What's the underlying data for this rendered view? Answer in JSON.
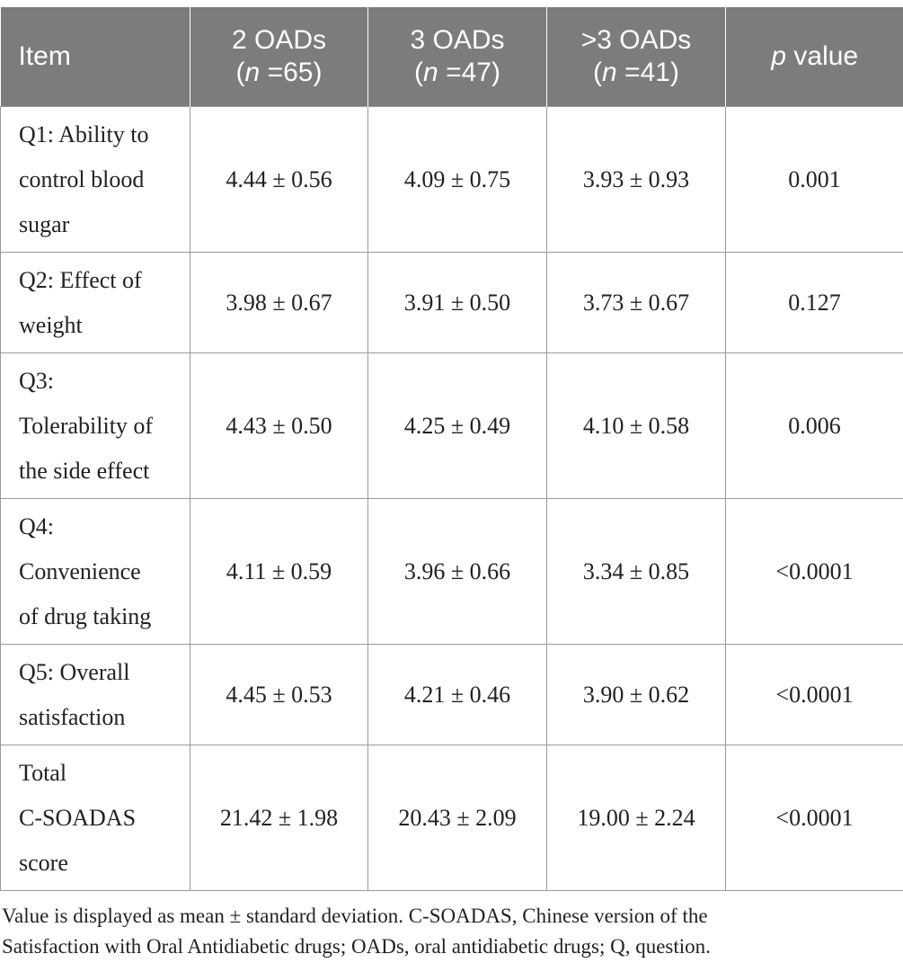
{
  "table": {
    "headers": [
      {
        "main": "Item",
        "sub_pre": "",
        "sub_it": "",
        "sub_post": ""
      },
      {
        "main": "2 OADs",
        "sub_pre": "(",
        "sub_it": "n",
        "sub_post": " =65)"
      },
      {
        "main": "3 OADs",
        "sub_pre": "(",
        "sub_it": "n",
        "sub_post": " =47)"
      },
      {
        "main": ">3 OADs",
        "sub_pre": "(",
        "sub_it": "n",
        "sub_post": " =41)"
      },
      {
        "main_it": "p",
        "main": " value"
      }
    ],
    "rows": [
      {
        "item_lines": [
          "Q1: Ability to",
          "control blood",
          "sugar"
        ],
        "v2": "4.44 ± 0.56",
        "v3": "4.09 ± 0.75",
        "v3plus": "3.93 ± 0.93",
        "p": "0.001"
      },
      {
        "item_lines": [
          "Q2: Effect of",
          "weight"
        ],
        "v2": "3.98 ± 0.67",
        "v3": "3.91 ± 0.50",
        "v3plus": "3.73 ± 0.67",
        "p": "0.127"
      },
      {
        "item_lines": [
          "Q3:",
          "Tolerability of",
          "the side effect"
        ],
        "v2": "4.43 ± 0.50",
        "v3": "4.25 ± 0.49",
        "v3plus": "4.10 ± 0.58",
        "p": "0.006"
      },
      {
        "item_lines": [
          "Q4:",
          "Convenience",
          "of drug taking"
        ],
        "v2": "4.11 ± 0.59",
        "v3": "3.96 ± 0.66",
        "v3plus": "3.34 ± 0.85",
        "p": "<0.0001"
      },
      {
        "item_lines": [
          "Q5: Overall",
          "satisfaction"
        ],
        "v2": "4.45 ± 0.53",
        "v3": "4.21 ± 0.46",
        "v3plus": "3.90 ± 0.62",
        "p": "<0.0001"
      },
      {
        "item_lines": [
          "Total",
          "C-SOADAS",
          "score"
        ],
        "v2": "21.42 ± 1.98",
        "v3": "20.43 ± 2.09",
        "v3plus": "19.00 ± 2.24",
        "p": "<0.0001"
      }
    ]
  },
  "footnote": {
    "line1": "Value is displayed as mean ± standard deviation. C-SOADAS, Chinese version of the",
    "line2": "Satisfaction with Oral Antidiabetic drugs; OADs, oral antidiabetic drugs; Q, question."
  }
}
